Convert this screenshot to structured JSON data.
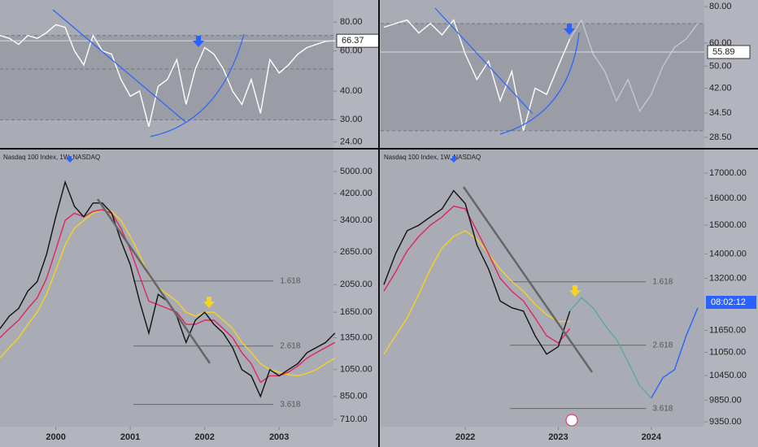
{
  "chart_data": [
    {
      "type": "line",
      "log": true,
      "xlim": [
        1999.25,
        2003.73
      ],
      "ylim": [
        22.6,
        100
      ],
      "yticks": [
        {
          "value": 80,
          "label": "80.00"
        },
        {
          "value": 60,
          "label": "60.00"
        },
        {
          "value": 40,
          "label": "40.00"
        },
        {
          "value": 30,
          "label": "30.00"
        },
        {
          "value": 24,
          "label": "24.00"
        }
      ],
      "bands": [
        70,
        50,
        30
      ],
      "last_value": {
        "value": 66.37,
        "label": "66.37"
      },
      "x": [
        1999.25,
        1999.375,
        1999.5,
        1999.625,
        1999.75,
        1999.875,
        2000,
        2000.125,
        2000.25,
        2000.375,
        2000.5,
        2000.625,
        2000.75,
        2000.875,
        2001,
        2001.125,
        2001.25,
        2001.375,
        2001.5,
        2001.625,
        2001.75,
        2001.875,
        2002,
        2002.125,
        2002.25,
        2002.375,
        2002.5,
        2002.625,
        2002.75,
        2002.875,
        2003,
        2003.125,
        2003.25,
        2003.375,
        2003.5,
        2003.625,
        2003.75
      ],
      "series": [
        {
          "color": "#ffffff",
          "values": [
            70,
            68,
            64,
            70,
            68,
            72,
            78,
            76,
            60,
            52,
            70,
            60,
            58,
            45,
            38,
            40,
            28,
            42,
            45,
            55,
            35,
            50,
            62,
            58,
            50,
            40,
            35,
            45,
            32,
            55,
            48,
            52,
            58,
            62,
            64,
            66,
            66.37
          ]
        }
      ]
    },
    {
      "type": "line",
      "log": true,
      "title": "Nasdaq 100 Index, 1W, NASDAQ",
      "xlim": [
        1999.25,
        2003.73
      ],
      "ylim": [
        670,
        5943
      ],
      "yticks": [
        {
          "value": 5000,
          "label": "5000.00"
        },
        {
          "value": 4200,
          "label": "4200.00"
        },
        {
          "value": 3400,
          "label": "3400.00"
        },
        {
          "value": 2650,
          "label": "2650.00"
        },
        {
          "value": 2050,
          "label": "2050.00"
        },
        {
          "value": 1650,
          "label": "1650.00"
        },
        {
          "value": 1350,
          "label": "1350.00"
        },
        {
          "value": 1050,
          "label": "1050.00"
        },
        {
          "value": 850,
          "label": "850.00"
        },
        {
          "value": 710,
          "label": "710.00"
        }
      ],
      "xticks": [
        2000,
        2001,
        2002,
        2003
      ],
      "levels": [
        {
          "value": 2110,
          "label": "1.618"
        },
        {
          "value": 1265,
          "label": "2.618"
        },
        {
          "value": 798,
          "label": "3.618"
        }
      ],
      "x": [
        1999.25,
        1999.375,
        1999.5,
        1999.625,
        1999.75,
        1999.875,
        2000,
        2000.125,
        2000.25,
        2000.375,
        2000.5,
        2000.625,
        2000.75,
        2000.875,
        2001,
        2001.125,
        2001.25,
        2001.375,
        2001.5,
        2001.625,
        2001.75,
        2001.875,
        2002,
        2002.125,
        2002.25,
        2002.375,
        2002.5,
        2002.625,
        2002.75,
        2002.875,
        2003,
        2003.125,
        2003.25,
        2003.375,
        2003.5,
        2003.625,
        2003.75
      ],
      "series": [
        {
          "color": "#f5d31e",
          "values": [
            1150,
            1250,
            1350,
            1500,
            1650,
            1900,
            2300,
            2800,
            3200,
            3400,
            3600,
            3700,
            3650,
            3400,
            3000,
            2600,
            2200,
            2000,
            1900,
            1800,
            1650,
            1600,
            1650,
            1650,
            1550,
            1450,
            1300,
            1200,
            1100,
            1050,
            1030,
            1010,
            1000,
            1020,
            1050,
            1100,
            1150
          ]
        },
        {
          "color": "#e0245e",
          "values": [
            1350,
            1450,
            1550,
            1700,
            1850,
            2150,
            2700,
            3400,
            3600,
            3500,
            3650,
            3700,
            3600,
            3200,
            2700,
            2200,
            1800,
            1750,
            1700,
            1650,
            1500,
            1500,
            1550,
            1550,
            1450,
            1350,
            1200,
            1100,
            950,
            1000,
            1000,
            1030,
            1080,
            1150,
            1200,
            1250,
            1300
          ]
        },
        {
          "color": "#111111",
          "values": [
            1450,
            1600,
            1700,
            1950,
            2100,
            2600,
            3500,
            4600,
            3800,
            3500,
            3900,
            3900,
            3600,
            2900,
            2400,
            1800,
            1400,
            1900,
            1800,
            1600,
            1300,
            1550,
            1650,
            1500,
            1400,
            1250,
            1050,
            1000,
            850,
            1050,
            1000,
            1050,
            1100,
            1200,
            1250,
            1300,
            1400
          ]
        }
      ]
    },
    {
      "type": "line",
      "log": true,
      "xlim": [
        2021.09,
        2024.57
      ],
      "ylim": [
        26.2,
        84.3
      ],
      "yticks": [
        {
          "value": 80,
          "label": "80.00"
        },
        {
          "value": 60,
          "label": "60.00"
        },
        {
          "value": 50,
          "label": "50.00"
        },
        {
          "value": 42,
          "label": "42.00"
        },
        {
          "value": 34.5,
          "label": "34.50"
        },
        {
          "value": 28.5,
          "label": "28.50"
        }
      ],
      "bands": [
        70,
        30
      ],
      "last_value": {
        "value": 55.89,
        "label": "55.89"
      },
      "x": [
        2021.125,
        2021.25,
        2021.375,
        2021.5,
        2021.625,
        2021.75,
        2021.875,
        2022,
        2022.125,
        2022.25,
        2022.375,
        2022.5,
        2022.625,
        2022.75,
        2022.875,
        2023,
        2023.125,
        2023.25,
        2023.375,
        2023.5,
        2023.625,
        2023.75,
        2023.875,
        2024,
        2024.125,
        2024.25,
        2024.375,
        2024.5
      ],
      "series": [
        {
          "color": "#ffffff",
          "values": [
            68,
            70,
            72,
            65,
            70,
            64,
            72,
            55,
            45,
            52,
            38,
            48,
            30,
            42,
            40,
            50,
            62,
            null,
            null,
            null,
            null,
            null,
            null,
            null,
            null,
            null,
            null,
            null
          ]
        },
        {
          "color": "#c4c7cf",
          "values": [
            null,
            null,
            null,
            null,
            null,
            null,
            null,
            null,
            null,
            null,
            null,
            null,
            null,
            null,
            null,
            null,
            62,
            72,
            55,
            48,
            38,
            45,
            35,
            40,
            50,
            58,
            62,
            70
          ]
        }
      ]
    },
    {
      "type": "line",
      "log": true,
      "title": "Nasdaq 100 Index, 1W, NASDAQ",
      "xlim": [
        2021.09,
        2024.57
      ],
      "ylim": [
        9242,
        17990
      ],
      "yticks": [
        {
          "value": 17000,
          "label": "17000.00"
        },
        {
          "value": 16000,
          "label": "16000.00"
        },
        {
          "value": 15000,
          "label": "15000.00"
        },
        {
          "value": 14000,
          "label": "14000.00"
        },
        {
          "value": 13200,
          "label": "13200.00"
        },
        {
          "value": 11650,
          "label": "11650.00"
        },
        {
          "value": 11050,
          "label": "11050.00"
        },
        {
          "value": 10450,
          "label": "10450.00"
        },
        {
          "value": 9850,
          "label": "9850.00"
        },
        {
          "value": 9350,
          "label": "9350.00"
        }
      ],
      "xticks": [
        2022,
        2023,
        2024
      ],
      "countdown": "08:02:12",
      "levels": [
        {
          "value": 13090,
          "label": "1.618"
        },
        {
          "value": 11240,
          "label": "2.618"
        },
        {
          "value": 9655,
          "label": "3.618"
        }
      ],
      "x": [
        2021.125,
        2021.25,
        2021.375,
        2021.5,
        2021.625,
        2021.75,
        2021.875,
        2022,
        2022.125,
        2022.25,
        2022.375,
        2022.5,
        2022.625,
        2022.75,
        2022.875,
        2023,
        2023.125,
        2023.25,
        2023.375,
        2023.5,
        2023.625,
        2023.75,
        2023.875,
        2024,
        2024.125,
        2024.25,
        2024.375,
        2024.5
      ],
      "series": [
        {
          "color": "#f5d31e",
          "values": [
            11000,
            11500,
            12000,
            12700,
            13500,
            14200,
            14600,
            14800,
            14500,
            14000,
            13500,
            13100,
            12800,
            12400,
            12100,
            11900,
            11900,
            null,
            null,
            null,
            null,
            null,
            null,
            null,
            null,
            null,
            null,
            null
          ]
        },
        {
          "color": "#e0245e",
          "values": [
            12800,
            13400,
            14100,
            14600,
            15000,
            15300,
            15700,
            15600,
            14800,
            14000,
            13200,
            12800,
            12500,
            12000,
            11500,
            11300,
            11700,
            null,
            null,
            null,
            null,
            null,
            null,
            null,
            null,
            null,
            null,
            null
          ]
        },
        {
          "color": "#111111",
          "values": [
            13000,
            14000,
            14800,
            15000,
            15300,
            15600,
            16300,
            15800,
            14300,
            13500,
            12500,
            12300,
            12200,
            11500,
            11000,
            11200,
            12200,
            null,
            null,
            null,
            null,
            null,
            null,
            null,
            null,
            null,
            null,
            null
          ]
        },
        {
          "color": "#5fa89a",
          "values": [
            null,
            null,
            null,
            null,
            null,
            null,
            null,
            null,
            null,
            null,
            null,
            null,
            null,
            null,
            null,
            null,
            12200,
            12600,
            12300,
            11800,
            11400,
            10800,
            10200,
            9900,
            null,
            null,
            null,
            null
          ]
        },
        {
          "color": "#2962ff",
          "values": [
            null,
            null,
            null,
            null,
            null,
            null,
            null,
            null,
            null,
            null,
            null,
            null,
            null,
            null,
            null,
            null,
            null,
            null,
            null,
            null,
            null,
            null,
            null,
            9900,
            10400,
            10600,
            11500,
            12300
          ]
        }
      ]
    }
  ]
}
